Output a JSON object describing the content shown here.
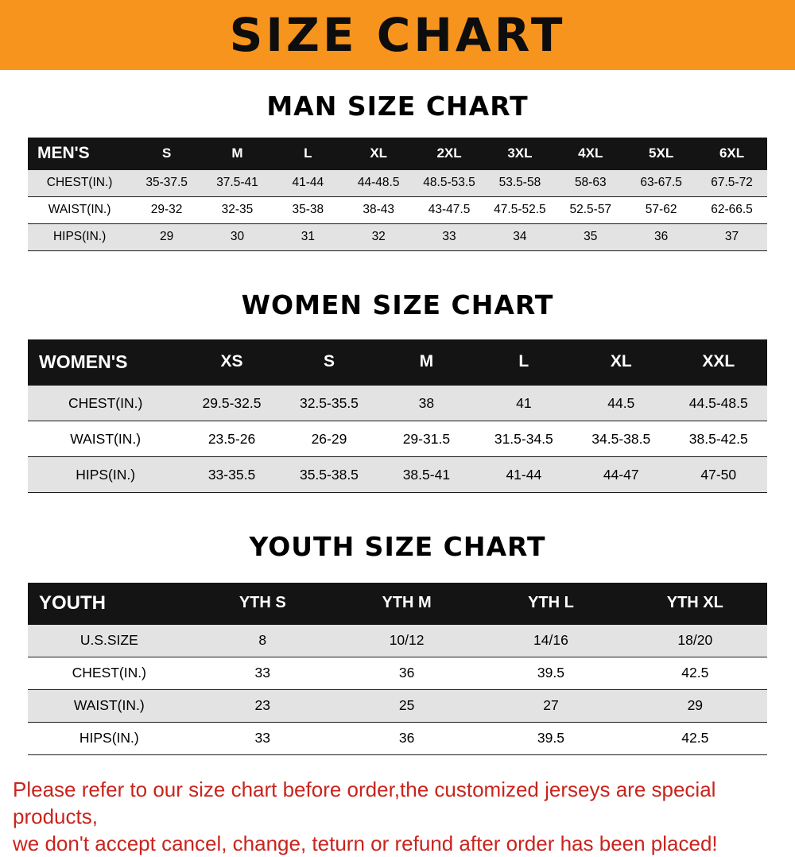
{
  "banner": {
    "title": "SIZE CHART"
  },
  "colors": {
    "banner_bg": "#F7941D",
    "header_bg": "#141414",
    "row_alt_bg": "#e3e3e3",
    "footer_text": "#c9241d"
  },
  "chart_data": [
    {
      "type": "table",
      "title": "MAN SIZE CHART",
      "corner_label": "MEN'S",
      "columns": [
        "S",
        "M",
        "L",
        "XL",
        "2XL",
        "3XL",
        "4XL",
        "5XL",
        "6XL"
      ],
      "rows": [
        {
          "label": "CHEST(IN.)",
          "values": [
            "35-37.5",
            "37.5-41",
            "41-44",
            "44-48.5",
            "48.5-53.5",
            "53.5-58",
            "58-63",
            "63-67.5",
            "67.5-72"
          ]
        },
        {
          "label": "WAIST(IN.)",
          "values": [
            "29-32",
            "32-35",
            "35-38",
            "38-43",
            "43-47.5",
            "47.5-52.5",
            "52.5-57",
            "57-62",
            "62-66.5"
          ]
        },
        {
          "label": "HIPS(IN.)",
          "values": [
            "29",
            "30",
            "31",
            "32",
            "33",
            "34",
            "35",
            "36",
            "37"
          ]
        }
      ]
    },
    {
      "type": "table",
      "title": "WOMEN SIZE CHART",
      "corner_label": "WOMEN'S",
      "columns": [
        "XS",
        "S",
        "M",
        "L",
        "XL",
        "XXL"
      ],
      "rows": [
        {
          "label": "CHEST(IN.)",
          "values": [
            "29.5-32.5",
            "32.5-35.5",
            "38",
            "41",
            "44.5",
            "44.5-48.5"
          ]
        },
        {
          "label": "WAIST(IN.)",
          "values": [
            "23.5-26",
            "26-29",
            "29-31.5",
            "31.5-34.5",
            "34.5-38.5",
            "38.5-42.5"
          ]
        },
        {
          "label": "HIPS(IN.)",
          "values": [
            "33-35.5",
            "35.5-38.5",
            "38.5-41",
            "41-44",
            "44-47",
            "47-50"
          ]
        }
      ]
    },
    {
      "type": "table",
      "title": "YOUTH SIZE CHART",
      "corner_label": "YOUTH",
      "columns": [
        "YTH S",
        "YTH M",
        "YTH L",
        "YTH XL"
      ],
      "rows": [
        {
          "label": "U.S.SIZE",
          "values": [
            "8",
            "10/12",
            "14/16",
            "18/20"
          ]
        },
        {
          "label": "CHEST(IN.)",
          "values": [
            "33",
            "36",
            "39.5",
            "42.5"
          ]
        },
        {
          "label": "WAIST(IN.)",
          "values": [
            "23",
            "25",
            "27",
            "29"
          ]
        },
        {
          "label": "HIPS(IN.)",
          "values": [
            "33",
            "36",
            "39.5",
            "42.5"
          ]
        }
      ]
    }
  ],
  "footer": {
    "line1": "Please refer to our size chart before order,the customized jerseys are special products,",
    "line2": "we don't accept cancel, change, teturn or refund after order has been placed!"
  }
}
